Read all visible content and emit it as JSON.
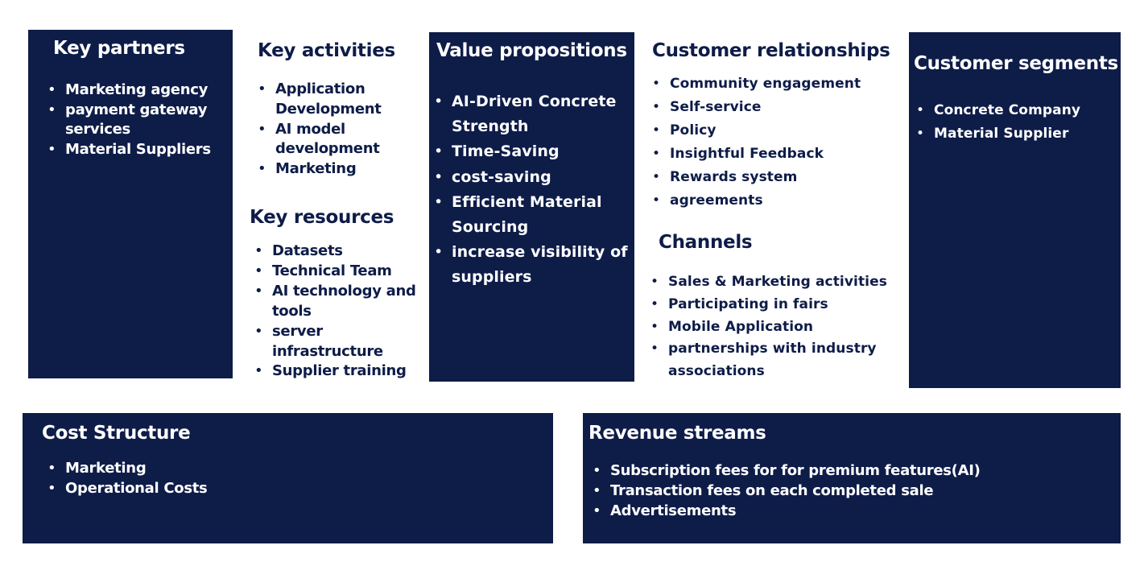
{
  "key_partners": {
    "title": "Key partners",
    "items": [
      "Marketing agency",
      "payment gateway services",
      "Material Suppliers"
    ]
  },
  "key_activities": {
    "title": "Key activities",
    "items": [
      "Application Development",
      "AI model development",
      "Marketing"
    ]
  },
  "key_resources": {
    "title": "Key resources",
    "items": [
      "Datasets",
      "Technical Team",
      "AI technology and tools",
      "server infrastructure",
      "Supplier training"
    ]
  },
  "value_propositions": {
    "title": "Value propositions",
    "items": [
      "AI-Driven Concrete Strength",
      "Time-Saving",
      " cost-saving",
      "Efficient Material Sourcing",
      "increase visibility of suppliers"
    ]
  },
  "customer_relationships": {
    "title": "Customer relationships",
    "items": [
      "Community engagement",
      "Self-service",
      "Policy",
      "Insightful Feedback",
      "Rewards system",
      "agreements"
    ]
  },
  "channels": {
    "title": "Channels",
    "items": [
      "Sales & Marketing activities",
      "Participating in fairs",
      "Mobile Application",
      "partnerships with industry associations"
    ]
  },
  "customer_segments": {
    "title": "Customer segments",
    "items": [
      "Concrete Company",
      "Material Supplier"
    ]
  },
  "cost_structure": {
    "title": "Cost Structure",
    "items": [
      "Marketing",
      "Operational Costs"
    ]
  },
  "revenue_streams": {
    "title": "Revenue streams",
    "items": [
      "Subscription fees for for premium features(AI)",
      "Transaction fees on each completed sale",
      "Advertisements"
    ]
  },
  "colors": {
    "panel": "#0e1c48",
    "panel_text": "#ffffff",
    "heading_dark": "#0e1c48"
  }
}
